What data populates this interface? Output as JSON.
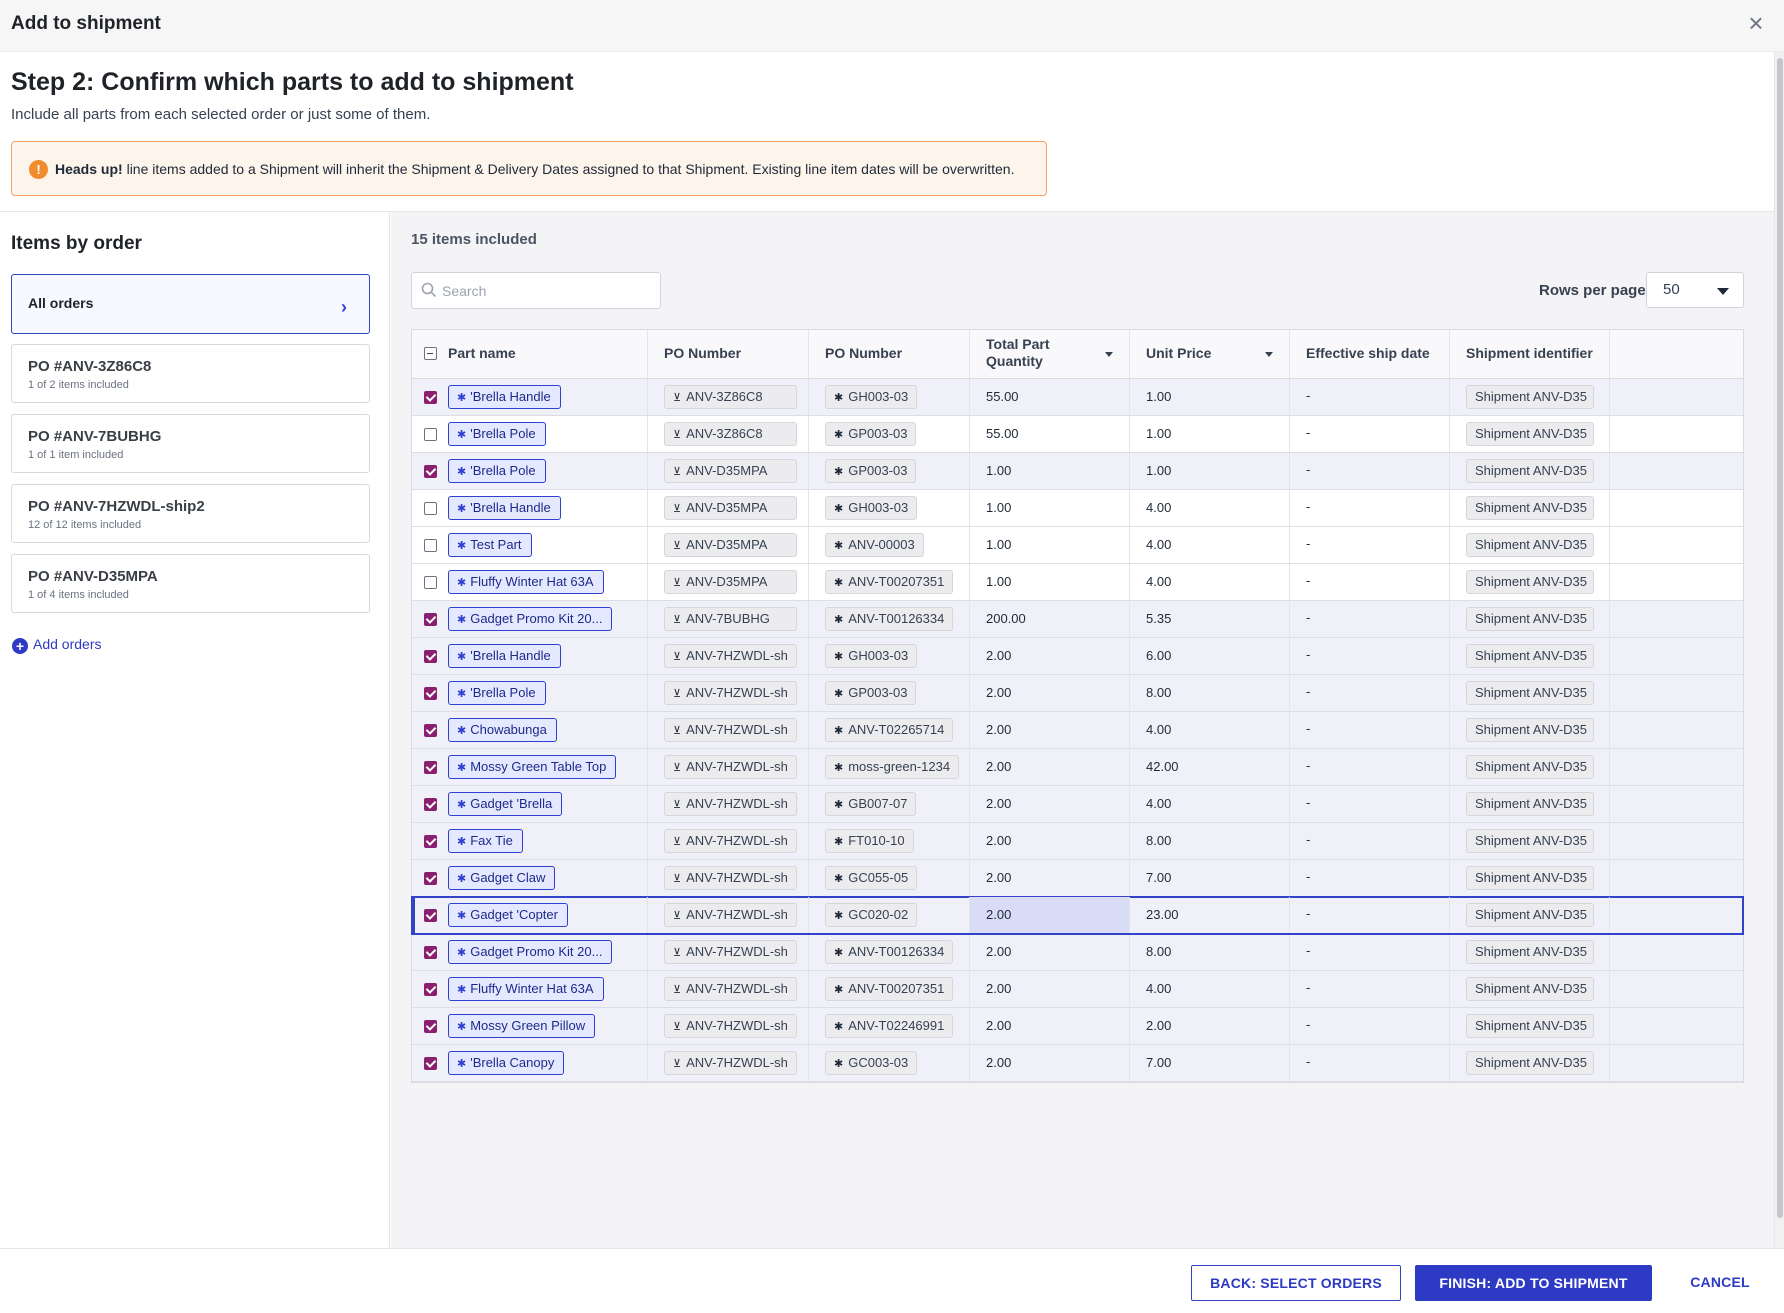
{
  "dialog": {
    "title": "Add to shipment",
    "close_icon": "close-icon"
  },
  "step": {
    "title": "Step 2: Confirm which parts to add to shipment",
    "subtitle": "Include all parts from each selected order or just some of them."
  },
  "alert": {
    "bold": "Heads up!",
    "text": " line items added to a Shipment will inherit the Shipment & Delivery Dates assigned to that Shipment. Existing line item dates will be overwritten.",
    "icon": "warning-icon",
    "color": "#f28b2e"
  },
  "sidebar": {
    "title": "Items by order",
    "all_orders": "All orders",
    "orders": [
      {
        "title": "PO #ANV-3Z86C8",
        "sub": "1 of 2 items included"
      },
      {
        "title": "PO #ANV-7BUBHG",
        "sub": "1 of 1 item included"
      },
      {
        "title": "PO #ANV-7HZWDL-ship2",
        "sub": "12 of 12 items included"
      },
      {
        "title": "PO #ANV-D35MPA",
        "sub": "1 of 4 items included"
      }
    ],
    "add_orders": "Add orders"
  },
  "main": {
    "items_count": "15 items included",
    "search_placeholder": "Search",
    "rows_per_page_label": "Rows per page",
    "rows_per_page_value": "50"
  },
  "table": {
    "columns": [
      "Part name",
      "PO Number",
      "PO Number",
      "Total Part Quantity",
      "Unit Price",
      "Effective ship date",
      "Shipment identifier"
    ],
    "rows": [
      {
        "checked": true,
        "part": "'Brella Handle",
        "po": "ANV-3Z86C8",
        "po2": "GH003-03",
        "qty": "55.00",
        "price": "1.00",
        "ship": "-",
        "shipment": "Shipment ANV-D35"
      },
      {
        "checked": false,
        "part": "'Brella Pole",
        "po": "ANV-3Z86C8",
        "po2": "GP003-03",
        "qty": "55.00",
        "price": "1.00",
        "ship": "-",
        "shipment": "Shipment ANV-D35"
      },
      {
        "checked": true,
        "part": "'Brella Pole",
        "po": "ANV-D35MPA",
        "po2": "GP003-03",
        "qty": "1.00",
        "price": "1.00",
        "ship": "-",
        "shipment": "Shipment ANV-D35"
      },
      {
        "checked": false,
        "part": "'Brella Handle",
        "po": "ANV-D35MPA",
        "po2": "GH003-03",
        "qty": "1.00",
        "price": "4.00",
        "ship": "-",
        "shipment": "Shipment ANV-D35"
      },
      {
        "checked": false,
        "part": "Test Part",
        "po": "ANV-D35MPA",
        "po2": "ANV-00003",
        "qty": "1.00",
        "price": "4.00",
        "ship": "-",
        "shipment": "Shipment ANV-D35"
      },
      {
        "checked": false,
        "part": "Fluffy Winter Hat 63A",
        "po": "ANV-D35MPA",
        "po2": "ANV-T00207351",
        "qty": "1.00",
        "price": "4.00",
        "ship": "-",
        "shipment": "Shipment ANV-D35"
      },
      {
        "checked": true,
        "part": "Gadget Promo Kit 20...",
        "po": "ANV-7BUBHG",
        "po2": "ANV-T00126334",
        "qty": "200.00",
        "price": "5.35",
        "ship": "-",
        "shipment": "Shipment ANV-D35"
      },
      {
        "checked": true,
        "part": "'Brella Handle",
        "po": "ANV-7HZWDL-sh",
        "po2": "GH003-03",
        "qty": "2.00",
        "price": "6.00",
        "ship": "-",
        "shipment": "Shipment ANV-D35"
      },
      {
        "checked": true,
        "part": "'Brella Pole",
        "po": "ANV-7HZWDL-sh",
        "po2": "GP003-03",
        "qty": "2.00",
        "price": "8.00",
        "ship": "-",
        "shipment": "Shipment ANV-D35"
      },
      {
        "checked": true,
        "part": "Chowabunga",
        "po": "ANV-7HZWDL-sh",
        "po2": "ANV-T02265714",
        "qty": "2.00",
        "price": "4.00",
        "ship": "-",
        "shipment": "Shipment ANV-D35"
      },
      {
        "checked": true,
        "part": "Mossy Green Table Top",
        "po": "ANV-7HZWDL-sh",
        "po2": "moss-green-1234",
        "qty": "2.00",
        "price": "42.00",
        "ship": "-",
        "shipment": "Shipment ANV-D35"
      },
      {
        "checked": true,
        "part": "Gadget 'Brella",
        "po": "ANV-7HZWDL-sh",
        "po2": "GB007-07",
        "qty": "2.00",
        "price": "4.00",
        "ship": "-",
        "shipment": "Shipment ANV-D35"
      },
      {
        "checked": true,
        "part": "Fax Tie",
        "po": "ANV-7HZWDL-sh",
        "po2": "FT010-10",
        "qty": "2.00",
        "price": "8.00",
        "ship": "-",
        "shipment": "Shipment ANV-D35"
      },
      {
        "checked": true,
        "part": "Gadget Claw",
        "po": "ANV-7HZWDL-sh",
        "po2": "GC055-05",
        "qty": "2.00",
        "price": "7.00",
        "ship": "-",
        "shipment": "Shipment ANV-D35"
      },
      {
        "checked": true,
        "part": "Gadget 'Copter",
        "po": "ANV-7HZWDL-sh",
        "po2": "GC020-02",
        "qty": "2.00",
        "price": "23.00",
        "ship": "-",
        "shipment": "Shipment ANV-D35"
      },
      {
        "checked": true,
        "part": "Gadget Promo Kit 20...",
        "po": "ANV-7HZWDL-sh",
        "po2": "ANV-T00126334",
        "qty": "2.00",
        "price": "8.00",
        "ship": "-",
        "shipment": "Shipment ANV-D35"
      },
      {
        "checked": true,
        "part": "Fluffy Winter Hat 63A",
        "po": "ANV-7HZWDL-sh",
        "po2": "ANV-T00207351",
        "qty": "2.00",
        "price": "4.00",
        "ship": "-",
        "shipment": "Shipment ANV-D35"
      },
      {
        "checked": true,
        "part": "Mossy Green Pillow",
        "po": "ANV-7HZWDL-sh",
        "po2": "ANV-T02246991",
        "qty": "2.00",
        "price": "2.00",
        "ship": "-",
        "shipment": "Shipment ANV-D35"
      },
      {
        "checked": true,
        "part": "'Brella Canopy",
        "po": "ANV-7HZWDL-sh",
        "po2": "GC003-03",
        "qty": "2.00",
        "price": "7.00",
        "ship": "-",
        "shipment": "Shipment ANV-D35"
      }
    ],
    "focused_row": 14
  },
  "footer": {
    "back": "BACK: SELECT ORDERS",
    "finish": "FINISH: ADD TO SHIPMENT",
    "cancel": "CANCEL"
  },
  "colors": {
    "accent": "#2d3ac4",
    "checkbox": "#8a1f6e",
    "warning": "#f28b2e"
  }
}
